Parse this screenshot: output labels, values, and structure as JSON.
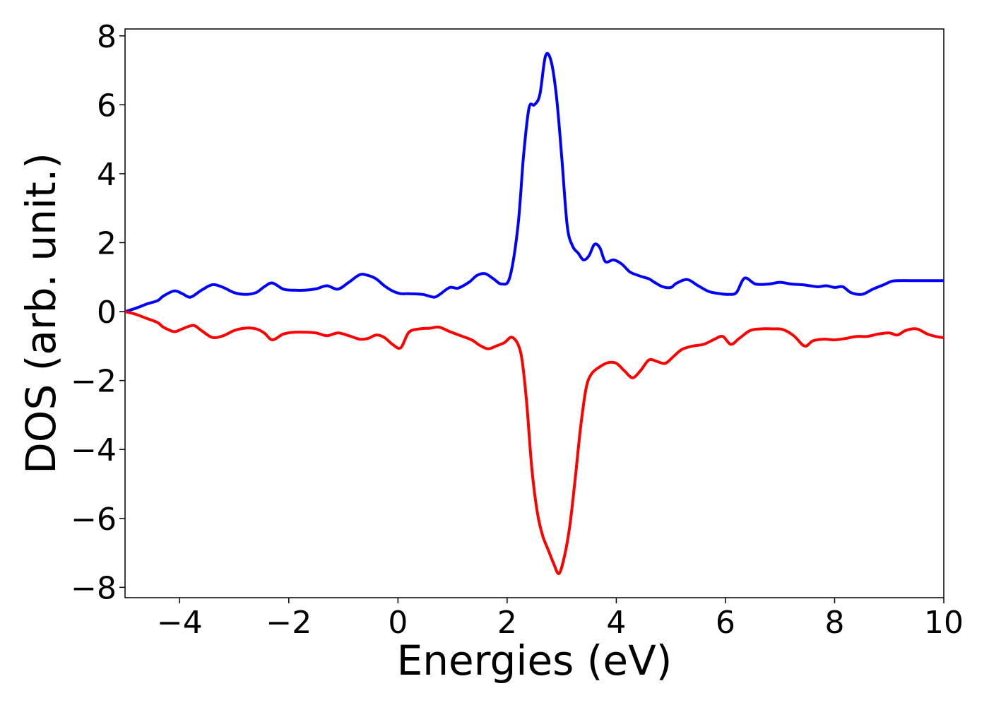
{
  "chart_data": {
    "type": "line",
    "title": "",
    "xlabel": "Energies (eV)",
    "ylabel": "DOS (arb. unit.)",
    "xlim": [
      -5,
      10
    ],
    "ylim": [
      -8.3,
      8.2
    ],
    "xticks": [
      -4,
      -2,
      0,
      2,
      4,
      6,
      8,
      10
    ],
    "xtick_labels": [
      "−4",
      "−2",
      "0",
      "2",
      "4",
      "6",
      "8",
      "10"
    ],
    "yticks": [
      -8,
      -6,
      -4,
      -2,
      0,
      2,
      4,
      6,
      8
    ],
    "ytick_labels": [
      "−8",
      "−6",
      "−4",
      "−2",
      "0",
      "2",
      "4",
      "6",
      "8"
    ],
    "grid": false,
    "legend": "none",
    "series": [
      {
        "color": "#0000ff",
        "x": [
          -5.0,
          -4.8,
          -4.6,
          -4.4,
          -4.3,
          -4.1,
          -3.95,
          -3.8,
          -3.6,
          -3.4,
          -3.2,
          -3.0,
          -2.8,
          -2.6,
          -2.45,
          -2.3,
          -2.1,
          -1.9,
          -1.7,
          -1.5,
          -1.3,
          -1.1,
          -0.9,
          -0.7,
          -0.55,
          -0.4,
          -0.25,
          -0.1,
          0.05,
          0.2,
          0.45,
          0.65,
          0.75,
          0.95,
          1.1,
          1.3,
          1.45,
          1.6,
          1.75,
          1.9,
          2.05,
          2.2,
          2.3,
          2.4,
          2.5,
          2.6,
          2.7,
          2.8,
          2.9,
          3.0,
          3.1,
          3.2,
          3.3,
          3.4,
          3.5,
          3.6,
          3.7,
          3.8,
          3.95,
          4.1,
          4.25,
          4.4,
          4.5,
          4.6,
          4.7,
          4.85,
          5.0,
          5.1,
          5.3,
          5.5,
          5.7,
          5.9,
          6.05,
          6.2,
          6.35,
          6.55,
          6.8,
          7.0,
          7.2,
          7.4,
          7.55,
          7.7,
          7.85,
          8.0,
          8.15,
          8.3,
          8.5,
          8.7,
          8.9,
          9.05,
          9.2,
          9.35,
          9.5,
          9.7,
          9.85,
          10.0
        ],
        "y": [
          0.0,
          0.1,
          0.22,
          0.32,
          0.45,
          0.6,
          0.52,
          0.42,
          0.62,
          0.78,
          0.7,
          0.55,
          0.5,
          0.55,
          0.72,
          0.83,
          0.65,
          0.62,
          0.62,
          0.66,
          0.75,
          0.65,
          0.85,
          1.07,
          1.05,
          0.95,
          0.75,
          0.6,
          0.52,
          0.52,
          0.5,
          0.42,
          0.48,
          0.7,
          0.68,
          0.85,
          1.05,
          1.1,
          0.95,
          0.8,
          1.0,
          2.5,
          4.5,
          5.9,
          6.0,
          6.3,
          7.4,
          7.3,
          6.3,
          4.5,
          2.5,
          1.9,
          1.7,
          1.5,
          1.62,
          1.95,
          1.85,
          1.45,
          1.5,
          1.38,
          1.15,
          1.05,
          1.0,
          0.95,
          0.85,
          0.72,
          0.7,
          0.82,
          0.93,
          0.75,
          0.58,
          0.52,
          0.5,
          0.55,
          0.97,
          0.8,
          0.8,
          0.85,
          0.8,
          0.78,
          0.75,
          0.72,
          0.75,
          0.7,
          0.72,
          0.55,
          0.5,
          0.65,
          0.78,
          0.88,
          0.9,
          0.9,
          0.9,
          0.9,
          0.9,
          0.9
        ],
        "name": ""
      },
      {
        "color": "#ff0000",
        "x": [
          -5.0,
          -4.8,
          -4.6,
          -4.4,
          -4.3,
          -4.1,
          -3.95,
          -3.75,
          -3.6,
          -3.4,
          -3.2,
          -3.0,
          -2.8,
          -2.6,
          -2.45,
          -2.3,
          -2.1,
          -1.9,
          -1.7,
          -1.5,
          -1.3,
          -1.1,
          -0.9,
          -0.7,
          -0.55,
          -0.4,
          -0.25,
          -0.1,
          0.05,
          0.2,
          0.4,
          0.6,
          0.75,
          0.95,
          1.15,
          1.35,
          1.5,
          1.65,
          1.8,
          1.95,
          2.1,
          2.25,
          2.35,
          2.45,
          2.55,
          2.65,
          2.75,
          2.85,
          2.95,
          3.05,
          3.15,
          3.25,
          3.35,
          3.45,
          3.55,
          3.7,
          3.85,
          4.0,
          4.15,
          4.3,
          4.45,
          4.6,
          4.75,
          4.9,
          5.05,
          5.2,
          5.4,
          5.6,
          5.8,
          5.95,
          6.1,
          6.25,
          6.45,
          6.65,
          6.85,
          7.05,
          7.25,
          7.45,
          7.6,
          7.8,
          8.0,
          8.2,
          8.4,
          8.6,
          8.8,
          9.0,
          9.15,
          9.3,
          9.5,
          9.7,
          9.85,
          10.0
        ],
        "y": [
          0.0,
          -0.08,
          -0.2,
          -0.32,
          -0.45,
          -0.58,
          -0.5,
          -0.4,
          -0.55,
          -0.75,
          -0.7,
          -0.55,
          -0.48,
          -0.5,
          -0.62,
          -0.82,
          -0.65,
          -0.6,
          -0.6,
          -0.62,
          -0.7,
          -0.62,
          -0.7,
          -0.8,
          -0.78,
          -0.68,
          -0.75,
          -0.95,
          -1.05,
          -0.6,
          -0.5,
          -0.48,
          -0.45,
          -0.58,
          -0.7,
          -0.82,
          -0.98,
          -1.08,
          -1.0,
          -0.9,
          -0.75,
          -1.2,
          -2.5,
          -4.5,
          -5.8,
          -6.5,
          -6.9,
          -7.3,
          -7.6,
          -7.1,
          -6.2,
          -4.8,
          -3.3,
          -2.2,
          -1.8,
          -1.6,
          -1.48,
          -1.5,
          -1.72,
          -1.92,
          -1.7,
          -1.4,
          -1.45,
          -1.5,
          -1.3,
          -1.1,
          -1.0,
          -0.95,
          -0.8,
          -0.72,
          -0.95,
          -0.78,
          -0.55,
          -0.5,
          -0.5,
          -0.52,
          -0.7,
          -1.0,
          -0.85,
          -0.8,
          -0.82,
          -0.78,
          -0.72,
          -0.72,
          -0.65,
          -0.62,
          -0.68,
          -0.55,
          -0.5,
          -0.65,
          -0.72,
          -0.76
        ],
        "name": ""
      }
    ]
  }
}
